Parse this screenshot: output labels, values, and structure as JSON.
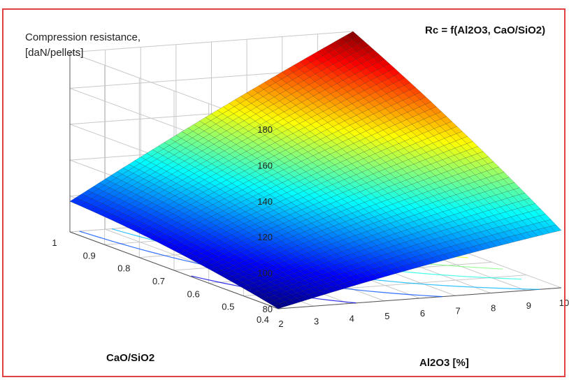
{
  "chart_data": {
    "type": "surface",
    "title": "Rc = f(Al2O3, CaO/SiO2)",
    "zlabel_line1": "Compression resistance,",
    "zlabel_line2": "[daN/pellets]",
    "xlabel": "Al2O3 [%]",
    "ylabel": "CaO/SiO2",
    "x_ticks": [
      "2",
      "3",
      "4",
      "5",
      "6",
      "7",
      "8",
      "9",
      "10"
    ],
    "y_ticks": [
      "0.4",
      "0.5",
      "0.6",
      "0.7",
      "0.8",
      "0.9",
      "1"
    ],
    "z_ticks": [
      "80",
      "100",
      "120",
      "140",
      "160",
      "180"
    ],
    "xlim": [
      2,
      10
    ],
    "ylim": [
      0.4,
      1.0
    ],
    "zlim": [
      80,
      180
    ],
    "corner_values": {
      "al2o3_2_ratio_1": 97,
      "al2o3_10_ratio_1": 180,
      "al2o3_2_ratio_0.4": 80,
      "al2o3_10_ratio_0.4": 112
    },
    "colormap": "jet",
    "grid": true,
    "contours_on_floor": true
  },
  "colors": {
    "frame_border": "#e0403f",
    "grid": "#c8c8c8",
    "axis": "#555555",
    "mesh": "#1a1a1a"
  }
}
